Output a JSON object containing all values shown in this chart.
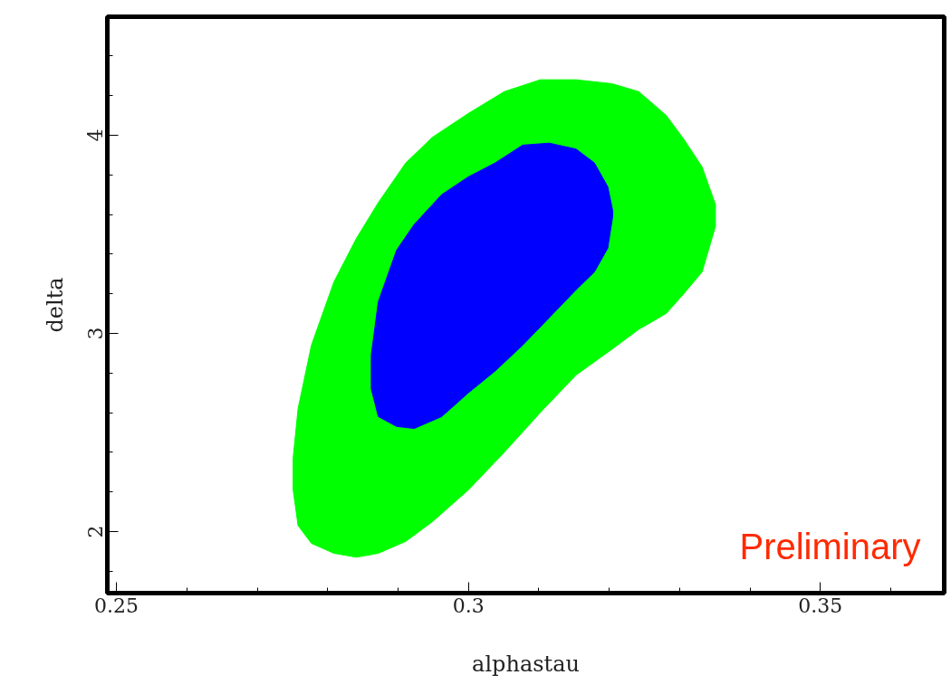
{
  "chart_data": {
    "type": "area",
    "xlabel": "alphastau",
    "ylabel": "delta",
    "xlim": [
      0.2487,
      0.3676
    ],
    "ylim": [
      1.689,
      4.598
    ],
    "xticks": [
      {
        "value": 0.25,
        "label": "0.25"
      },
      {
        "value": 0.26,
        "label": null
      },
      {
        "value": 0.27,
        "label": null
      },
      {
        "value": 0.28,
        "label": null
      },
      {
        "value": 0.29,
        "label": null
      },
      {
        "value": 0.3,
        "label": "0.3"
      },
      {
        "value": 0.31,
        "label": null
      },
      {
        "value": 0.32,
        "label": null
      },
      {
        "value": 0.33,
        "label": null
      },
      {
        "value": 0.34,
        "label": null
      },
      {
        "value": 0.35,
        "label": "0.35"
      },
      {
        "value": 0.36,
        "label": null
      }
    ],
    "yticks": [
      {
        "value": 1.8,
        "label": null
      },
      {
        "value": 2,
        "label": "2"
      },
      {
        "value": 2.2,
        "label": null
      },
      {
        "value": 2.4,
        "label": null
      },
      {
        "value": 2.6,
        "label": null
      },
      {
        "value": 2.8,
        "label": null
      },
      {
        "value": 3,
        "label": "3"
      },
      {
        "value": 3.2,
        "label": null
      },
      {
        "value": 3.4,
        "label": null
      },
      {
        "value": 3.6,
        "label": null
      },
      {
        "value": 3.8,
        "label": null
      },
      {
        "value": 4,
        "label": "4"
      },
      {
        "value": 4.2,
        "label": null
      },
      {
        "value": 4.4,
        "label": null
      }
    ],
    "grid": false,
    "annotations": [
      "Preliminary"
    ],
    "series": [
      {
        "color": "#00ff00",
        "x": [
          0.2751,
          0.2758,
          0.2777,
          0.2809,
          0.2841,
          0.2872,
          0.2911,
          0.2949,
          0.3,
          0.3051,
          0.3102,
          0.3153,
          0.3204,
          0.3242,
          0.3281,
          0.3306,
          0.3332,
          0.3351,
          0.3351,
          0.3332,
          0.3306,
          0.3281,
          0.3242,
          0.3204,
          0.3153,
          0.3102,
          0.3051,
          0.3,
          0.2949,
          0.2911,
          0.2872,
          0.2841,
          0.2809,
          0.2777,
          0.2758,
          0.2751
        ],
        "values": [
          2.21,
          2.03,
          1.94,
          1.89,
          1.87,
          1.89,
          1.95,
          2.05,
          2.21,
          2.4,
          2.6,
          2.79,
          2.92,
          3.02,
          3.1,
          3.2,
          3.31,
          3.54,
          3.65,
          3.84,
          3.98,
          4.1,
          4.22,
          4.26,
          4.28,
          4.28,
          4.22,
          4.11,
          3.99,
          3.86,
          3.66,
          3.48,
          3.26,
          2.94,
          2.62,
          2.37
        ]
      },
      {
        "color": "#0000ff",
        "x": [
          0.2862,
          0.2872,
          0.2898,
          0.2923,
          0.2962,
          0.3,
          0.3038,
          0.3077,
          0.3115,
          0.3153,
          0.3179,
          0.3198,
          0.3205,
          0.3205,
          0.3198,
          0.3179,
          0.3153,
          0.3115,
          0.3077,
          0.3038,
          0.3,
          0.2962,
          0.2923,
          0.2898,
          0.2872,
          0.2862
        ],
        "values": [
          2.72,
          2.58,
          2.53,
          2.52,
          2.58,
          2.7,
          2.81,
          2.94,
          3.08,
          3.22,
          3.31,
          3.43,
          3.59,
          3.62,
          3.74,
          3.86,
          3.93,
          3.96,
          3.95,
          3.86,
          3.79,
          3.7,
          3.55,
          3.42,
          3.16,
          2.89
        ]
      }
    ]
  }
}
